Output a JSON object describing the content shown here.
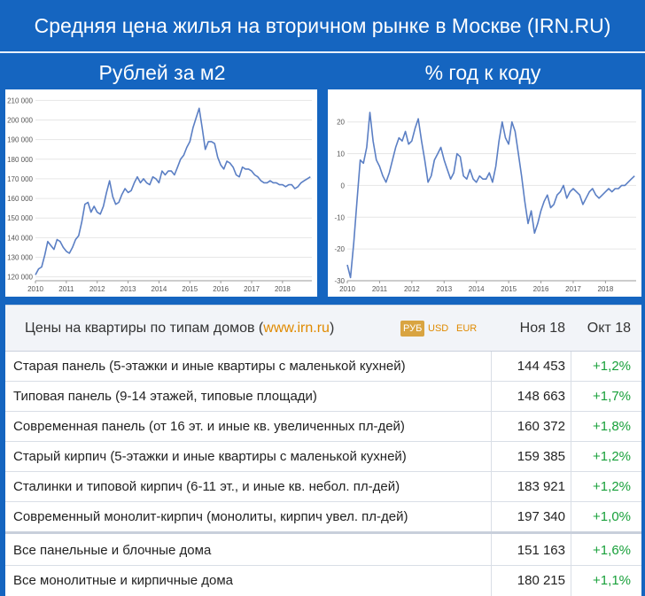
{
  "title": "Средняя цена жилья на вторичном рынке в Москве (IRN.RU)",
  "subtitles": {
    "left": "Рублей за м2",
    "right": "% год к коду"
  },
  "chart_data": [
    {
      "type": "line",
      "title": "Рублей за м2",
      "color": "#5b7fc4",
      "ylim": [
        118000,
        212000
      ],
      "xlim": [
        2010.0,
        2018.95
      ],
      "yticks": [
        "120 000",
        "130 000",
        "140 000",
        "150 000",
        "160 000",
        "170 000",
        "180 000",
        "190 000",
        "200 000",
        "210 000"
      ],
      "ytick_values": [
        120000,
        130000,
        140000,
        150000,
        160000,
        170000,
        180000,
        190000,
        200000,
        210000
      ],
      "xticks": [
        "2010",
        "2011",
        "2012",
        "2013",
        "2014",
        "2015",
        "2016",
        "2017",
        "2018"
      ],
      "x": [
        2010.0,
        2010.1,
        2010.2,
        2010.3,
        2010.4,
        2010.5,
        2010.6,
        2010.7,
        2010.8,
        2010.9,
        2011.0,
        2011.1,
        2011.2,
        2011.3,
        2011.4,
        2011.5,
        2011.6,
        2011.7,
        2011.8,
        2011.9,
        2012.0,
        2012.1,
        2012.2,
        2012.3,
        2012.4,
        2012.5,
        2012.6,
        2012.7,
        2012.8,
        2012.9,
        2013.0,
        2013.1,
        2013.2,
        2013.3,
        2013.4,
        2013.5,
        2013.6,
        2013.7,
        2013.8,
        2013.9,
        2014.0,
        2014.1,
        2014.2,
        2014.3,
        2014.4,
        2014.5,
        2014.6,
        2014.7,
        2014.8,
        2014.9,
        2015.0,
        2015.1,
        2015.2,
        2015.3,
        2015.4,
        2015.5,
        2015.6,
        2015.7,
        2015.8,
        2015.9,
        2016.0,
        2016.1,
        2016.2,
        2016.3,
        2016.4,
        2016.5,
        2016.6,
        2016.7,
        2016.8,
        2016.9,
        2017.0,
        2017.1,
        2017.2,
        2017.3,
        2017.4,
        2017.5,
        2017.6,
        2017.7,
        2017.8,
        2017.9,
        2018.0,
        2018.1,
        2018.2,
        2018.3,
        2018.4,
        2018.5,
        2018.6,
        2018.7,
        2018.8,
        2018.9
      ],
      "y": [
        121000,
        124000,
        125000,
        131000,
        138000,
        136000,
        134000,
        139000,
        138000,
        135000,
        133000,
        132000,
        135000,
        139000,
        141000,
        148000,
        157000,
        158000,
        153000,
        156000,
        153000,
        152000,
        156000,
        163000,
        169000,
        161000,
        157000,
        158000,
        162000,
        165000,
        163000,
        164000,
        168000,
        171000,
        168000,
        170000,
        168000,
        167000,
        171000,
        170000,
        168000,
        174000,
        172000,
        174000,
        174000,
        172000,
        176000,
        180000,
        182000,
        186000,
        189000,
        196000,
        201000,
        206000,
        196000,
        185000,
        189000,
        189000,
        188000,
        181000,
        177000,
        175000,
        179000,
        178000,
        176000,
        172000,
        171000,
        176000,
        175000,
        175000,
        174000,
        172000,
        171000,
        169000,
        168000,
        168000,
        169000,
        168000,
        168000,
        167000,
        167000,
        166000,
        167000,
        167000,
        165000,
        166000,
        168000,
        169000,
        170000,
        171000
      ]
    },
    {
      "type": "line",
      "title": "% год к коду",
      "color": "#5b7fc4",
      "ylim": [
        -30,
        28
      ],
      "xlim": [
        2010.0,
        2018.95
      ],
      "yticks": [
        "-30",
        "-20",
        "-10",
        "0",
        "10",
        "20"
      ],
      "ytick_values": [
        -30,
        -20,
        -10,
        0,
        10,
        20
      ],
      "xticks": [
        "2010",
        "2011",
        "2012",
        "2013",
        "2014",
        "2015",
        "2016",
        "2017",
        "2018"
      ],
      "x": [
        2010.0,
        2010.1,
        2010.2,
        2010.3,
        2010.4,
        2010.5,
        2010.6,
        2010.7,
        2010.8,
        2010.9,
        2011.0,
        2011.1,
        2011.2,
        2011.3,
        2011.4,
        2011.5,
        2011.6,
        2011.7,
        2011.8,
        2011.9,
        2012.0,
        2012.1,
        2012.2,
        2012.3,
        2012.4,
        2012.5,
        2012.6,
        2012.7,
        2012.8,
        2012.9,
        2013.0,
        2013.1,
        2013.2,
        2013.3,
        2013.4,
        2013.5,
        2013.6,
        2013.7,
        2013.8,
        2013.9,
        2014.0,
        2014.1,
        2014.2,
        2014.3,
        2014.4,
        2014.5,
        2014.6,
        2014.7,
        2014.8,
        2014.9,
        2015.0,
        2015.1,
        2015.2,
        2015.3,
        2015.4,
        2015.5,
        2015.6,
        2015.7,
        2015.8,
        2015.9,
        2016.0,
        2016.1,
        2016.2,
        2016.3,
        2016.4,
        2016.5,
        2016.6,
        2016.7,
        2016.8,
        2016.9,
        2017.0,
        2017.1,
        2017.2,
        2017.3,
        2017.4,
        2017.5,
        2017.6,
        2017.7,
        2017.8,
        2017.9,
        2018.0,
        2018.1,
        2018.2,
        2018.3,
        2018.4,
        2018.5,
        2018.6,
        2018.7,
        2018.8,
        2018.9
      ],
      "y": [
        -25,
        -29,
        -18,
        -5,
        8,
        7,
        12,
        23,
        14,
        8,
        6,
        3,
        1,
        4,
        8,
        12,
        15,
        14,
        17,
        13,
        14,
        18,
        21,
        14,
        8,
        1,
        3,
        8,
        10,
        12,
        8,
        5,
        2,
        4,
        10,
        9,
        3,
        2,
        5,
        2,
        1,
        3,
        2,
        2,
        4,
        1,
        6,
        14,
        20,
        15,
        13,
        20,
        17,
        10,
        3,
        -5,
        -12,
        -8,
        -15,
        -12,
        -8,
        -5,
        -3,
        -7,
        -6,
        -3,
        -2,
        0,
        -4,
        -2,
        -1,
        -2,
        -3,
        -6,
        -4,
        -2,
        -1,
        -3,
        -4,
        -3,
        -2,
        -1,
        -2,
        -1,
        -1,
        0,
        0,
        1,
        2,
        3
      ]
    }
  ],
  "table": {
    "heading_text": "Цены на квартиры по типам домов (",
    "heading_link": "www.irn.ru",
    "heading_close": ")",
    "currencies": [
      "РУБ",
      "USD",
      "EUR"
    ],
    "col_price": "Ноя 18",
    "col_change": "Окт 18",
    "rows": [
      {
        "name": "Старая панель (5-этажки и иные квартиры с маленькой кухней)",
        "price": "144 453",
        "change": "+1,2%"
      },
      {
        "name": "Типовая панель (9-14 этажей, типовые площади)",
        "price": "148 663",
        "change": "+1,7%"
      },
      {
        "name": "Современная панель (от 16 эт. и иные кв. увеличенных пл-дей)",
        "price": "160 372",
        "change": "+1,8%"
      },
      {
        "name": "Старый кирпич (5-этажки и иные квартиры с маленькой кухней)",
        "price": "159 385",
        "change": "+1,2%"
      },
      {
        "name": "Сталинки и типовой кирпич (6-11 эт., и иные кв. небол. пл-дей)",
        "price": "183 921",
        "change": "+1,2%"
      },
      {
        "name": "Современный монолит-кирпич (монолиты, кирпич увел. пл-дей)",
        "price": "197 340",
        "change": "+1,0%"
      },
      {
        "name": "Все панельные и блочные дома",
        "price": "151 163",
        "change": "+1,6%"
      },
      {
        "name": "Все монолитные и кирпичные дома",
        "price": "180 215",
        "change": "+1,1%"
      }
    ]
  }
}
